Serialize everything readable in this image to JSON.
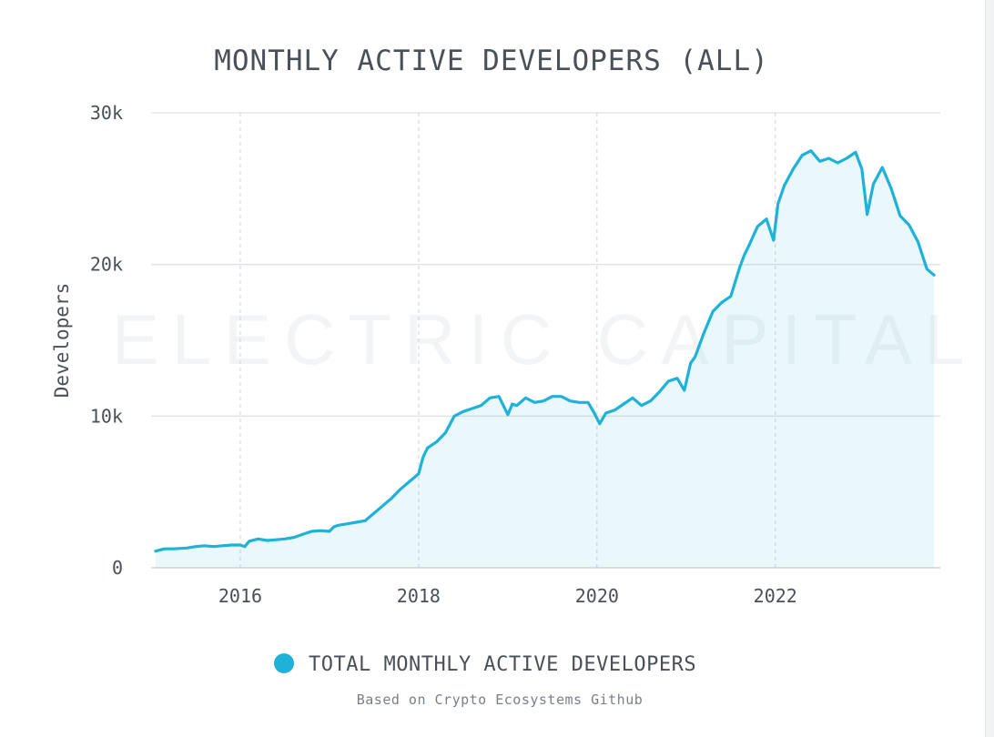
{
  "chart_data": {
    "type": "area",
    "title": "MONTHLY ACTIVE DEVELOPERS (ALL)",
    "xlabel": "",
    "ylabel": "Developers",
    "xlim": [
      2015,
      2023.85
    ],
    "ylim": [
      0,
      30000
    ],
    "x_ticks": [
      {
        "value": 2016,
        "label": "2016"
      },
      {
        "value": 2018,
        "label": "2018"
      },
      {
        "value": 2020,
        "label": "2020"
      },
      {
        "value": 2022,
        "label": "2022"
      }
    ],
    "y_ticks": [
      {
        "value": 0,
        "label": "0"
      },
      {
        "value": 10000,
        "label": "10k"
      },
      {
        "value": 20000,
        "label": "20k"
      },
      {
        "value": 30000,
        "label": "30k"
      }
    ],
    "grid": "horizontal solid, vertical dashed",
    "legend_position": "bottom-center",
    "watermark": "ELECTRIC CAPITAL",
    "source_note": "Based on Crypto Ecosystems Github",
    "series": [
      {
        "name": "TOTAL MONTHLY ACTIVE DEVELOPERS",
        "color": "#1fb2d8",
        "x": [
          2015.05,
          2015.15,
          2015.25,
          2015.4,
          2015.5,
          2015.6,
          2015.7,
          2015.8,
          2015.9,
          2016.0,
          2016.05,
          2016.1,
          2016.2,
          2016.3,
          2016.4,
          2016.5,
          2016.6,
          2016.7,
          2016.8,
          2016.9,
          2017.0,
          2017.05,
          2017.1,
          2017.2,
          2017.3,
          2017.4,
          2017.5,
          2017.6,
          2017.7,
          2017.8,
          2017.9,
          2018.0,
          2018.05,
          2018.1,
          2018.2,
          2018.3,
          2018.4,
          2018.5,
          2018.6,
          2018.7,
          2018.8,
          2018.9,
          2019.0,
          2019.05,
          2019.1,
          2019.2,
          2019.3,
          2019.4,
          2019.5,
          2019.6,
          2019.7,
          2019.8,
          2019.9,
          2019.97,
          2020.03,
          2020.1,
          2020.2,
          2020.3,
          2020.4,
          2020.5,
          2020.6,
          2020.7,
          2020.8,
          2020.9,
          2020.98,
          2021.05,
          2021.1,
          2021.2,
          2021.3,
          2021.4,
          2021.5,
          2021.6,
          2021.65,
          2021.7,
          2021.8,
          2021.9,
          2021.98,
          2022.03,
          2022.1,
          2022.2,
          2022.3,
          2022.4,
          2022.5,
          2022.6,
          2022.7,
          2022.8,
          2022.9,
          2022.97,
          2023.03,
          2023.1,
          2023.2,
          2023.3,
          2023.4,
          2023.5,
          2023.6,
          2023.7,
          2023.78
        ],
        "values": [
          1100,
          1250,
          1250,
          1300,
          1400,
          1450,
          1400,
          1450,
          1500,
          1500,
          1400,
          1750,
          1900,
          1800,
          1850,
          1900,
          2000,
          2200,
          2400,
          2450,
          2400,
          2700,
          2800,
          2900,
          3000,
          3100,
          3600,
          4100,
          4600,
          5200,
          5700,
          6200,
          7300,
          7900,
          8300,
          8900,
          10000,
          10300,
          10500,
          10700,
          11200,
          11300,
          10100,
          10800,
          10700,
          11200,
          10900,
          11000,
          11300,
          11300,
          11000,
          10900,
          10900,
          10200,
          9500,
          10200,
          10400,
          10800,
          11200,
          10700,
          11000,
          11600,
          12300,
          12500,
          11700,
          13500,
          13900,
          15500,
          16900,
          17500,
          17900,
          19800,
          20600,
          21200,
          22500,
          23000,
          21600,
          24000,
          25200,
          26300,
          27200,
          27500,
          26800,
          27000,
          26700,
          27000,
          27400,
          26300,
          23300,
          25300,
          26400,
          25000,
          23200,
          22600,
          21500,
          19700,
          19300
        ]
      }
    ]
  }
}
